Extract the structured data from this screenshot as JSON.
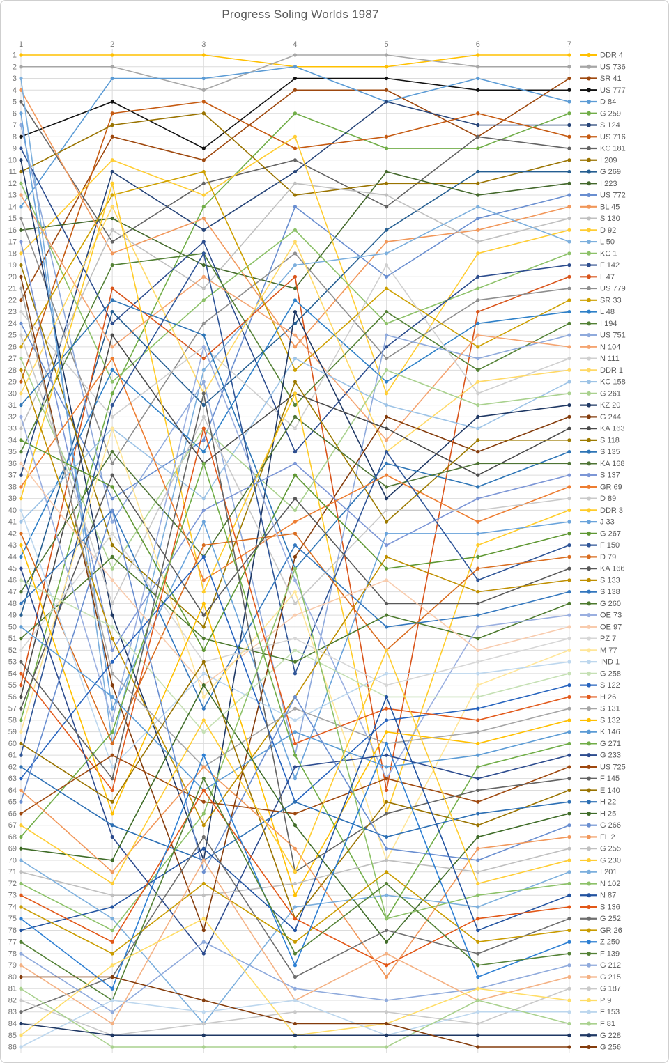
{
  "title": "Progress Soling Worlds 1987",
  "style": {
    "background": "#FFFFFF",
    "frame_border": "#CFCFCF",
    "grid_color": "#DCDCDC",
    "axis_text_color": "#757575",
    "legend_text_color": "#595959",
    "title_color": "#595959"
  },
  "chart_data": {
    "type": "line",
    "variant": "bump-rank-progression",
    "title": "Progress Soling Worlds 1987",
    "xlabel": "",
    "ylabel": "",
    "x": [
      1,
      2,
      3,
      4,
      5,
      6,
      7
    ],
    "x_axis_position": "top",
    "ylim": [
      1,
      86
    ],
    "y_ticks": {
      "from": 1,
      "to": 86,
      "step": 1
    },
    "y_inverted": true,
    "grid": true,
    "legend_position": "right",
    "series": [
      {
        "name": "DDR 4",
        "color": "#FFC000",
        "ranks": [
          1,
          1,
          1,
          2,
          2,
          1,
          1
        ]
      },
      {
        "name": "US 736",
        "color": "#A6A6A6",
        "ranks": [
          2,
          2,
          4,
          1,
          1,
          2,
          2
        ]
      },
      {
        "name": "SR 41",
        "color": "#9E480E",
        "ranks": [
          22,
          8,
          10,
          4,
          4,
          8,
          3
        ]
      },
      {
        "name": "US 777",
        "color": "#111111",
        "ranks": [
          8,
          5,
          9,
          3,
          3,
          4,
          4
        ]
      },
      {
        "name": "D 84",
        "color": "#5B9BD5",
        "ranks": [
          14,
          3,
          3,
          2,
          5,
          3,
          5
        ]
      },
      {
        "name": "G 259",
        "color": "#70AD47",
        "ranks": [
          58,
          30,
          14,
          6,
          9,
          9,
          6
        ]
      },
      {
        "name": "S 124",
        "color": "#264478",
        "ranks": [
          37,
          11,
          16,
          11,
          5,
          7,
          7
        ]
      },
      {
        "name": "US 716",
        "color": "#C55A11",
        "ranks": [
          29,
          6,
          5,
          9,
          8,
          6,
          8
        ]
      },
      {
        "name": "KC 181",
        "color": "#636363",
        "ranks": [
          5,
          17,
          12,
          10,
          14,
          8,
          9
        ]
      },
      {
        "name": "I 209",
        "color": "#997300",
        "ranks": [
          11,
          7,
          6,
          13,
          12,
          12,
          10
        ]
      },
      {
        "name": "G 269",
        "color": "#255E91",
        "ranks": [
          49,
          23,
          31,
          24,
          16,
          11,
          11
        ]
      },
      {
        "name": "I 223",
        "color": "#43682B",
        "ranks": [
          16,
          15,
          19,
          21,
          11,
          13,
          12
        ]
      },
      {
        "name": "US 772",
        "color": "#698ED0",
        "ranks": [
          24,
          39,
          34,
          14,
          20,
          15,
          13
        ]
      },
      {
        "name": "BL 45",
        "color": "#F1975A",
        "ranks": [
          4,
          18,
          15,
          26,
          17,
          16,
          14
        ]
      },
      {
        "name": "S 130",
        "color": "#BFBFBF",
        "ranks": [
          33,
          16,
          21,
          12,
          13,
          17,
          15
        ]
      },
      {
        "name": "D 92",
        "color": "#FFCD33",
        "ranks": [
          18,
          10,
          13,
          8,
          30,
          18,
          16
        ]
      },
      {
        "name": "L 50",
        "color": "#7CAFDD",
        "ranks": [
          3,
          60,
          28,
          19,
          18,
          14,
          17
        ]
      },
      {
        "name": "KC 1",
        "color": "#8CC168",
        "ranks": [
          12,
          29,
          22,
          16,
          24,
          21,
          18
        ]
      },
      {
        "name": "F 142",
        "color": "#2D4D8E",
        "ranks": [
          9,
          24,
          17,
          35,
          26,
          20,
          19
        ]
      },
      {
        "name": "L 47",
        "color": "#D9541A",
        "ranks": [
          55,
          21,
          27,
          20,
          64,
          23,
          20
        ]
      },
      {
        "name": "US 779",
        "color": "#8E8E8E",
        "ranks": [
          15,
          36,
          24,
          18,
          27,
          22,
          21
        ]
      },
      {
        "name": "SR 33",
        "color": "#CDA001",
        "ranks": [
          26,
          13,
          11,
          28,
          21,
          26,
          22
        ]
      },
      {
        "name": "L 48",
        "color": "#2E80C8",
        "ranks": [
          44,
          28,
          35,
          22,
          29,
          24,
          23
        ]
      },
      {
        "name": "I 194",
        "color": "#538135",
        "ranks": [
          35,
          19,
          18,
          31,
          23,
          28,
          24
        ]
      },
      {
        "name": "US 751",
        "color": "#8FAADC",
        "ranks": [
          7,
          41,
          29,
          61,
          25,
          27,
          25
        ]
      },
      {
        "name": "N 104",
        "color": "#F4A471",
        "ranks": [
          13,
          26,
          20,
          25,
          34,
          25,
          26
        ]
      },
      {
        "name": "N 111",
        "color": "#CFCFCF",
        "ranks": [
          23,
          32,
          26,
          33,
          19,
          30,
          27
        ]
      },
      {
        "name": "DDR 1",
        "color": "#FFD966",
        "ranks": [
          30,
          14,
          30,
          17,
          35,
          29,
          28
        ]
      },
      {
        "name": "KC 158",
        "color": "#9DC3E6",
        "ranks": [
          41,
          33,
          39,
          27,
          31,
          33,
          29
        ]
      },
      {
        "name": "G 261",
        "color": "#A9D18E",
        "ranks": [
          27,
          45,
          33,
          40,
          28,
          31,
          30
        ]
      },
      {
        "name": "KZ 20",
        "color": "#1F3864",
        "ranks": [
          10,
          49,
          70,
          23,
          39,
          32,
          31
        ]
      },
      {
        "name": "G 244",
        "color": "#843C0C",
        "ranks": [
          20,
          55,
          76,
          44,
          32,
          35,
          32
        ]
      },
      {
        "name": "KA 163",
        "color": "#4A4A4A",
        "ranks": [
          56,
          25,
          36,
          30,
          33,
          37,
          33
        ]
      },
      {
        "name": "S 118",
        "color": "#9C7A00",
        "ranks": [
          19,
          43,
          50,
          29,
          41,
          34,
          34
        ]
      },
      {
        "name": "S 135",
        "color": "#2E75B6",
        "ranks": [
          31,
          22,
          25,
          45,
          36,
          38,
          35
        ]
      },
      {
        "name": "KA 168",
        "color": "#4E7434",
        "ranks": [
          47,
          35,
          44,
          32,
          38,
          36,
          36
        ]
      },
      {
        "name": "S 137",
        "color": "#7C96D6",
        "ranks": [
          17,
          52,
          40,
          36,
          43,
          39,
          37
        ]
      },
      {
        "name": "GR 69",
        "color": "#ED7D31",
        "ranks": [
          38,
          27,
          46,
          41,
          37,
          41,
          38
        ]
      },
      {
        "name": "D 89",
        "color": "#C9C9C9",
        "ranks": [
          25,
          48,
          32,
          48,
          40,
          40,
          39
        ]
      },
      {
        "name": "DDR 3",
        "color": "#FFCC29",
        "ranks": [
          39,
          12,
          47,
          30,
          66,
          43,
          40
        ]
      },
      {
        "name": "J 33",
        "color": "#69A3DB",
        "ranks": [
          6,
          57,
          41,
          63,
          42,
          42,
          41
        ]
      },
      {
        "name": "G 267",
        "color": "#5E9732",
        "ranks": [
          34,
          38,
          52,
          37,
          45,
          44,
          42
        ]
      },
      {
        "name": "F 150",
        "color": "#2F5597",
        "ranks": [
          61,
          31,
          18,
          54,
          35,
          46,
          43
        ]
      },
      {
        "name": "D 79",
        "color": "#D96C1E",
        "ranks": [
          42,
          60,
          43,
          42,
          52,
          45,
          44
        ]
      },
      {
        "name": "KA 166",
        "color": "#595959",
        "ranks": [
          57,
          37,
          49,
          39,
          48,
          48,
          45
        ]
      },
      {
        "name": "S 133",
        "color": "#BF8F00",
        "ranks": [
          28,
          51,
          67,
          56,
          44,
          47,
          46
        ]
      },
      {
        "name": "S 138",
        "color": "#3377BE",
        "ranks": [
          48,
          40,
          57,
          43,
          50,
          49,
          47
        ]
      },
      {
        "name": "G 260",
        "color": "#4D7A2E",
        "ranks": [
          51,
          44,
          51,
          53,
          49,
          51,
          48
        ]
      },
      {
        "name": "OE 73",
        "color": "#9AAFE0",
        "ranks": [
          32,
          58,
          26,
          46,
          63,
          50,
          49
        ]
      },
      {
        "name": "OE 97",
        "color": "#F8CBAD",
        "ranks": [
          36,
          46,
          55,
          49,
          46,
          52,
          50
        ]
      },
      {
        "name": "PZ 7",
        "color": "#D6D6D6",
        "ranks": [
          52,
          42,
          53,
          51,
          55,
          53,
          51
        ]
      },
      {
        "name": "M 77",
        "color": "#FFE699",
        "ranks": [
          59,
          33,
          56,
          47,
          70,
          55,
          52
        ]
      },
      {
        "name": "IND 1",
        "color": "#BDD7EE",
        "ranks": [
          40,
          62,
          54,
          58,
          54,
          54,
          53
        ]
      },
      {
        "name": "G 258",
        "color": "#C5E0B4",
        "ranks": [
          46,
          50,
          59,
          52,
          56,
          56,
          54
        ]
      },
      {
        "name": "S 122",
        "color": "#2663BE",
        "ranks": [
          63,
          53,
          44,
          65,
          58,
          57,
          55
        ]
      },
      {
        "name": "H 26",
        "color": "#E25A1C",
        "ranks": [
          54,
          64,
          33,
          60,
          57,
          58,
          56
        ]
      },
      {
        "name": "S 131",
        "color": "#A5A5A5",
        "ranks": [
          21,
          54,
          62,
          57,
          60,
          59,
          57
        ]
      },
      {
        "name": "S 132",
        "color": "#FFC000",
        "ranks": [
          43,
          66,
          48,
          73,
          59,
          60,
          58
        ]
      },
      {
        "name": "K 146",
        "color": "#5B9BD5",
        "ranks": [
          50,
          56,
          64,
          59,
          62,
          61,
          59
        ]
      },
      {
        "name": "G 271",
        "color": "#70AD47",
        "ranks": [
          68,
          59,
          36,
          61,
          75,
          62,
          60
        ]
      },
      {
        "name": "G 233",
        "color": "#2C4B8E",
        "ranks": [
          45,
          68,
          78,
          62,
          61,
          63,
          61
        ]
      },
      {
        "name": "US 725",
        "color": "#9E480E",
        "ranks": [
          66,
          61,
          65,
          66,
          63,
          65,
          62
        ]
      },
      {
        "name": "F 145",
        "color": "#636363",
        "ranks": [
          53,
          63,
          30,
          71,
          66,
          64,
          63
        ]
      },
      {
        "name": "E 140",
        "color": "#997300",
        "ranks": [
          60,
          65,
          53,
          75,
          65,
          67,
          64
        ]
      },
      {
        "name": "H 22",
        "color": "#2C6FB4",
        "ranks": [
          62,
          67,
          70,
          65,
          68,
          66,
          65
        ]
      },
      {
        "name": "H 25",
        "color": "#3F6C28",
        "ranks": [
          69,
          70,
          55,
          67,
          77,
          68,
          66
        ]
      },
      {
        "name": "G 266",
        "color": "#698ED0",
        "ranks": [
          65,
          40,
          71,
          56,
          69,
          70,
          67
        ]
      },
      {
        "name": "FL 2",
        "color": "#F1975A",
        "ranks": [
          64,
          71,
          62,
          69,
          80,
          69,
          68
        ]
      },
      {
        "name": "G 255",
        "color": "#BFBFBF",
        "ranks": [
          71,
          73,
          73,
          72,
          70,
          71,
          69
        ]
      },
      {
        "name": "G 230",
        "color": "#FFCD33",
        "ranks": [
          67,
          72,
          58,
          71,
          52,
          72,
          70
        ]
      },
      {
        "name": "I 201",
        "color": "#7CAFDD",
        "ranks": [
          70,
          75,
          84,
          74,
          73,
          74,
          71
        ]
      },
      {
        "name": "N 102",
        "color": "#8CC168",
        "ranks": [
          72,
          76,
          66,
          45,
          75,
          73,
          72
        ]
      },
      {
        "name": "N 87",
        "color": "#2253A0",
        "ranks": [
          76,
          74,
          69,
          76,
          56,
          76,
          73
        ]
      },
      {
        "name": "S 136",
        "color": "#E25717",
        "ranks": [
          73,
          77,
          64,
          75,
          79,
          75,
          74
        ]
      },
      {
        "name": "G 252",
        "color": "#6E6E6E",
        "ranks": [
          83,
          80,
          68,
          80,
          76,
          78,
          75
        ]
      },
      {
        "name": "GR 26",
        "color": "#C99C00",
        "ranks": [
          74,
          78,
          72,
          77,
          71,
          77,
          76
        ]
      },
      {
        "name": "Z 250",
        "color": "#2D7FD3",
        "ranks": [
          75,
          81,
          61,
          79,
          60,
          80,
          77
        ]
      },
      {
        "name": "F 139",
        "color": "#538135",
        "ranks": [
          77,
          82,
          63,
          78,
          72,
          79,
          78
        ]
      },
      {
        "name": "G 212",
        "color": "#8FAADC",
        "ranks": [
          78,
          83,
          77,
          81,
          82,
          81,
          79
        ]
      },
      {
        "name": "G 215",
        "color": "#F4B183",
        "ranks": [
          79,
          84,
          70,
          82,
          78,
          82,
          80
        ]
      },
      {
        "name": "G 187",
        "color": "#C9C9C9",
        "ranks": [
          82,
          85,
          84,
          83,
          83,
          84,
          81
        ]
      },
      {
        "name": "P 9",
        "color": "#FFDD66",
        "ranks": [
          85,
          79,
          75,
          85,
          84,
          81,
          82
        ]
      },
      {
        "name": "F 153",
        "color": "#BDD7EE",
        "ranks": [
          86,
          82,
          83,
          82,
          85,
          83,
          83
        ]
      },
      {
        "name": "F 81",
        "color": "#A9D18E",
        "ranks": [
          81,
          86,
          86,
          86,
          86,
          82,
          84
        ]
      },
      {
        "name": "G 228",
        "color": "#1F3864",
        "ranks": [
          84,
          85,
          85,
          85,
          85,
          85,
          85
        ]
      },
      {
        "name": "G 256",
        "color": "#843C0C",
        "ranks": [
          80,
          80,
          82,
          84,
          84,
          86,
          86
        ]
      }
    ]
  }
}
